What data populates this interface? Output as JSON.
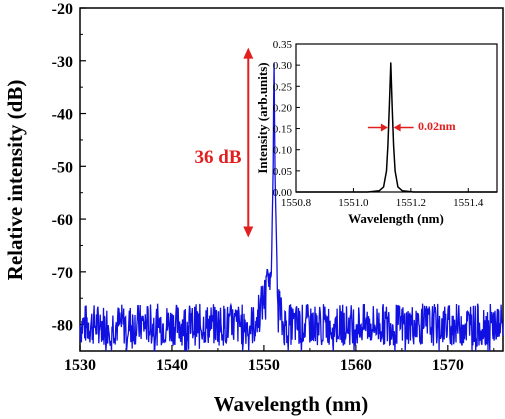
{
  "chart_data": [
    {
      "type": "line",
      "xlabel": "Wavelength (nm)",
      "ylabel": "Relative intensity (dB)",
      "xlim": [
        1530,
        1576
      ],
      "ylim": [
        -85,
        -20
      ],
      "xticks": [
        1530,
        1540,
        1550,
        1560,
        1570
      ],
      "yticks": [
        -20,
        -30,
        -40,
        -50,
        -60,
        -70,
        -80
      ],
      "grid": false,
      "series": [
        {
          "color": "#1010e0",
          "noise_floor_db": -80,
          "noise_band_db": [
            -85,
            -75
          ],
          "peak_x": 1551.1,
          "peak_y": -27.5,
          "x": [
            1530,
            1549,
            1549.8,
            1550.2,
            1550.5,
            1550.8,
            1551.0,
            1551.1,
            1551.2,
            1551.5,
            1552,
            1576
          ],
          "y": [
            -80,
            -80,
            -76,
            -74,
            -72,
            -70,
            -50,
            -27.5,
            -52,
            -74,
            -80,
            -80
          ]
        }
      ],
      "annotations": [
        {
          "text": "36 dB",
          "color": "#e11f1f",
          "arrow_from_db": -27.5,
          "arrow_to_db": -63.5,
          "arrow_x": 1548.3
        }
      ]
    },
    {
      "type": "line",
      "role": "inset",
      "xlabel": "Wavelength (nm)",
      "ylabel": "Intensity (arb.units)",
      "xlim": [
        1550.8,
        1551.5
      ],
      "ylim": [
        0,
        0.35
      ],
      "xticks": [
        "1550.8",
        "1551.0",
        "1551.2",
        "1551.4"
      ],
      "xtick_values": [
        1550.8,
        1551.0,
        1551.2,
        1551.4
      ],
      "yticks": [
        "0.00",
        "0.05",
        "0.10",
        "0.15",
        "0.20",
        "0.25",
        "0.30",
        "0.35"
      ],
      "ytick_values": [
        0,
        0.05,
        0.1,
        0.15,
        0.2,
        0.25,
        0.3,
        0.35
      ],
      "series": [
        {
          "color": "#000000",
          "peak_x": 1551.13,
          "peak_y": 0.305,
          "fwhm_nm": 0.02,
          "x": [
            1550.8,
            1551.05,
            1551.09,
            1551.105,
            1551.115,
            1551.12,
            1551.125,
            1551.13,
            1551.135,
            1551.14,
            1551.145,
            1551.155,
            1551.17,
            1551.21,
            1551.5
          ],
          "y": [
            0,
            0.0,
            0.003,
            0.012,
            0.05,
            0.11,
            0.2,
            0.305,
            0.2,
            0.11,
            0.05,
            0.012,
            0.003,
            0.0,
            0
          ]
        }
      ],
      "annotations": [
        {
          "text": "0.02nm",
          "color": "#e11f1f"
        }
      ]
    }
  ]
}
